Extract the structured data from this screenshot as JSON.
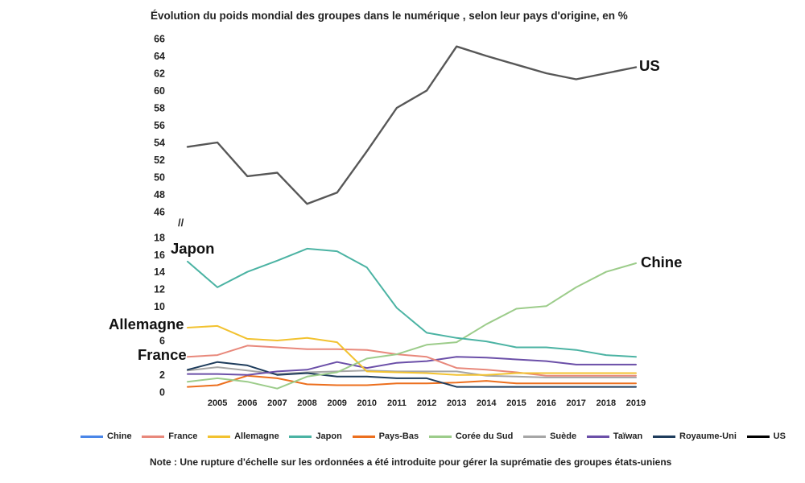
{
  "chart_data": {
    "type": "line",
    "title": "Évolution du poids mondial des groupes dans le numérique , selon leur pays d'origine, en %",
    "categories": [
      "",
      "2005",
      "2006",
      "2007",
      "2008",
      "2009",
      "2010",
      "2011",
      "2012",
      "2013",
      "2014",
      "2015",
      "2016",
      "2017",
      "2018",
      "2019"
    ],
    "axis_break": "//",
    "upper_panel": {
      "ylim": [
        46,
        66
      ],
      "ticks": [
        66,
        64,
        62,
        60,
        58,
        56,
        54,
        52,
        50,
        48,
        46
      ],
      "series": [
        {
          "name": "US",
          "color": "#575757",
          "values": [
            53.5,
            54.0,
            50.1,
            50.5,
            46.9,
            48.2,
            53.0,
            58.0,
            60.0,
            65.1,
            64.0,
            63.0,
            62.0,
            61.3,
            62.0,
            62.7
          ]
        }
      ]
    },
    "lower_panel": {
      "ylim": [
        0,
        18
      ],
      "ticks": [
        18,
        16,
        14,
        12,
        10,
        6,
        2,
        0
      ],
      "series": [
        {
          "name": "Suède",
          "color": "#a6a6a6",
          "values": [
            2.5,
            2.9,
            2.5,
            2.1,
            2.3,
            2.4,
            2.5,
            2.4,
            2.4,
            2.4,
            1.9,
            1.8,
            1.7,
            1.7,
            1.7,
            1.7
          ]
        },
        {
          "name": "Pays-Bas",
          "color": "#ec6f1e",
          "values": [
            0.6,
            0.8,
            1.9,
            1.6,
            0.9,
            0.8,
            0.8,
            1.0,
            1.0,
            1.1,
            1.3,
            1.0,
            1.0,
            1.0,
            1.0,
            1.0
          ]
        },
        {
          "name": "Royaume-Uni",
          "color": "#1e3c5c",
          "values": [
            2.6,
            3.5,
            3.1,
            2.0,
            2.2,
            1.8,
            1.8,
            1.6,
            1.6,
            0.6,
            0.6,
            0.6,
            0.6,
            0.6,
            0.6,
            0.6
          ]
        },
        {
          "name": "Taïwan",
          "color": "#6b4fa8",
          "values": [
            2.1,
            2.1,
            2.0,
            2.4,
            2.6,
            3.5,
            2.8,
            3.4,
            3.6,
            4.1,
            4.0,
            3.8,
            3.6,
            3.2,
            3.2,
            3.2
          ]
        },
        {
          "name": "France",
          "color": "#e8887b",
          "values": [
            4.1,
            4.3,
            5.4,
            5.2,
            5.0,
            5.0,
            4.9,
            4.4,
            4.1,
            2.8,
            2.6,
            2.3,
            1.9,
            1.9,
            1.9,
            1.9
          ]
        },
        {
          "name": "Allemagne",
          "color": "#f2c230",
          "values": [
            7.5,
            7.7,
            6.2,
            6.0,
            6.3,
            5.8,
            2.4,
            2.3,
            2.2,
            2.0,
            2.0,
            2.2,
            2.2,
            2.2,
            2.2,
            2.2
          ]
        },
        {
          "name": "Chine",
          "color": "#9ccc8a",
          "values": [
            1.2,
            1.6,
            1.2,
            0.4,
            1.8,
            2.3,
            3.9,
            4.4,
            5.5,
            5.8,
            7.9,
            9.7,
            10.0,
            12.2,
            14.0,
            15.0
          ]
        },
        {
          "name": "Japon",
          "color": "#4bb3a3",
          "values": [
            15.2,
            12.2,
            14.0,
            15.3,
            16.7,
            16.4,
            14.5,
            9.8,
            6.9,
            6.3,
            5.9,
            5.2,
            5.2,
            4.9,
            4.3,
            4.1
          ]
        }
      ]
    },
    "annotations": [
      "US",
      "Chine",
      "Japon",
      "Allemagne",
      "France"
    ],
    "legend": [
      {
        "label": "Chine",
        "color": "#4a86e8"
      },
      {
        "label": "France",
        "color": "#e8887b"
      },
      {
        "label": "Allemagne",
        "color": "#f2c230"
      },
      {
        "label": "Japon",
        "color": "#4bb3a3"
      },
      {
        "label": "Pays-Bas",
        "color": "#ec6f1e"
      },
      {
        "label": "Corée du Sud",
        "color": "#9ccc8a"
      },
      {
        "label": "Suède",
        "color": "#a6a6a6"
      },
      {
        "label": "Taïwan",
        "color": "#6b4fa8"
      },
      {
        "label": "Royaume-Uni",
        "color": "#1e3c5c"
      },
      {
        "label": "US",
        "color": "#000000"
      }
    ],
    "legend_position": "bottom",
    "grid": false,
    "note": "Note : Une rupture d'échelle sur les ordonnées a été introduite pour gérer la suprématie des groupes états-uniens"
  }
}
